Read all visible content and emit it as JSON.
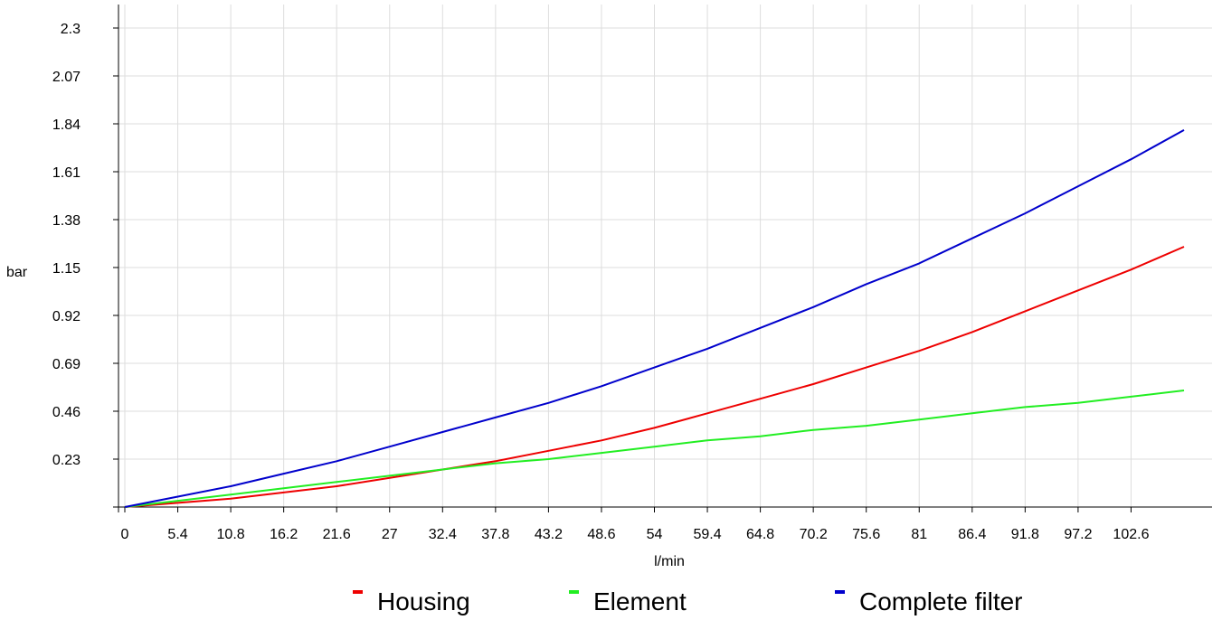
{
  "chart_data": {
    "type": "line",
    "xlabel": "l/min",
    "ylabel": "bar",
    "x_ticks": [
      "0",
      "5.4",
      "10.8",
      "16.2",
      "21.6",
      "27",
      "32.4",
      "37.8",
      "43.2",
      "48.6",
      "54",
      "59.4",
      "64.8",
      "70.2",
      "75.6",
      "81",
      "86.4",
      "91.8",
      "97.2",
      "102.6"
    ],
    "y_ticks": [
      "0.23",
      "0.46",
      "0.69",
      "0.92",
      "1.15",
      "1.38",
      "1.61",
      "1.84",
      "2.07",
      "2.3"
    ],
    "xlim": [
      0,
      108
    ],
    "ylim": [
      0,
      2.3
    ],
    "grid": true,
    "legend_position": "bottom",
    "x": [
      0,
      5.4,
      10.8,
      16.2,
      21.6,
      27,
      32.4,
      37.8,
      43.2,
      48.6,
      54,
      59.4,
      64.8,
      70.2,
      75.6,
      81,
      86.4,
      91.8,
      97.2,
      102.6,
      108
    ],
    "series": [
      {
        "name": "Housing",
        "color": "#ee0000",
        "values": [
          0,
          0.02,
          0.04,
          0.07,
          0.1,
          0.14,
          0.18,
          0.22,
          0.27,
          0.32,
          0.38,
          0.45,
          0.52,
          0.59,
          0.67,
          0.75,
          0.84,
          0.94,
          1.04,
          1.14,
          1.25
        ]
      },
      {
        "name": "Element",
        "color": "#22ee22",
        "values": [
          0,
          0.03,
          0.06,
          0.09,
          0.12,
          0.15,
          0.18,
          0.21,
          0.23,
          0.26,
          0.29,
          0.32,
          0.34,
          0.37,
          0.39,
          0.42,
          0.45,
          0.48,
          0.5,
          0.53,
          0.56
        ]
      },
      {
        "name": "Complete filter",
        "color": "#0000cc",
        "values": [
          0,
          0.05,
          0.1,
          0.16,
          0.22,
          0.29,
          0.36,
          0.43,
          0.5,
          0.58,
          0.67,
          0.76,
          0.86,
          0.96,
          1.07,
          1.17,
          1.29,
          1.41,
          1.54,
          1.67,
          1.81
        ]
      }
    ]
  }
}
